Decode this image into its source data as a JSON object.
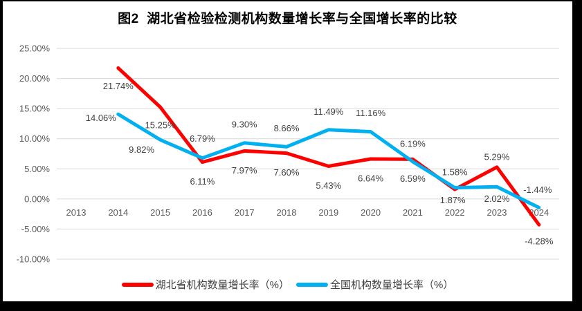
{
  "chart_data": {
    "type": "line",
    "title": "图2  湖北省检验检测机构数量增长率与全国增长率的比较",
    "categories": [
      "2013",
      "2014",
      "2015",
      "2016",
      "2017",
      "2018",
      "2019",
      "2020",
      "2021",
      "2022",
      "2023",
      "2024"
    ],
    "series": [
      {
        "name": "湖北省机构数量增长率（%）",
        "color": "#ff0000",
        "values": [
          null,
          21.74,
          15.25,
          6.11,
          7.97,
          7.6,
          5.43,
          6.64,
          6.59,
          1.58,
          5.29,
          -4.28
        ],
        "label_offsets": [
          [
            0,
            0
          ],
          [
            0,
            26
          ],
          [
            0,
            26
          ],
          [
            0,
            28
          ],
          [
            0,
            28
          ],
          [
            0,
            28
          ],
          [
            0,
            28
          ],
          [
            0,
            28
          ],
          [
            0,
            28
          ],
          [
            0,
            -25
          ],
          [
            0,
            -15
          ],
          [
            0,
            24
          ]
        ]
      },
      {
        "name": "全国机构数量增长率（%）",
        "color": "#00b0f0",
        "values": [
          null,
          14.06,
          9.82,
          6.79,
          9.3,
          8.66,
          11.49,
          11.16,
          6.19,
          1.87,
          2.02,
          -1.44
        ],
        "label_offsets": [
          [
            0,
            0
          ],
          [
            -25,
            5
          ],
          [
            -27,
            14
          ],
          [
            0,
            -28
          ],
          [
            0,
            -27
          ],
          [
            0,
            -27
          ],
          [
            0,
            -26
          ],
          [
            0,
            -27
          ],
          [
            0,
            -26
          ],
          [
            -3,
            18
          ],
          [
            0,
            17
          ],
          [
            -2,
            -26
          ]
        ]
      }
    ],
    "yticks": [
      25,
      20,
      15,
      10,
      5,
      0,
      -5,
      -10
    ],
    "ylim": [
      -10,
      25
    ],
    "xlabel": "",
    "ylabel": "",
    "grid": true,
    "legend_position": "bottom",
    "colors": {
      "gridline": "#d9d9d9",
      "axis_text": "#595959",
      "label_text": "#404040",
      "frame": "#000000",
      "background": "#ffffff"
    }
  }
}
